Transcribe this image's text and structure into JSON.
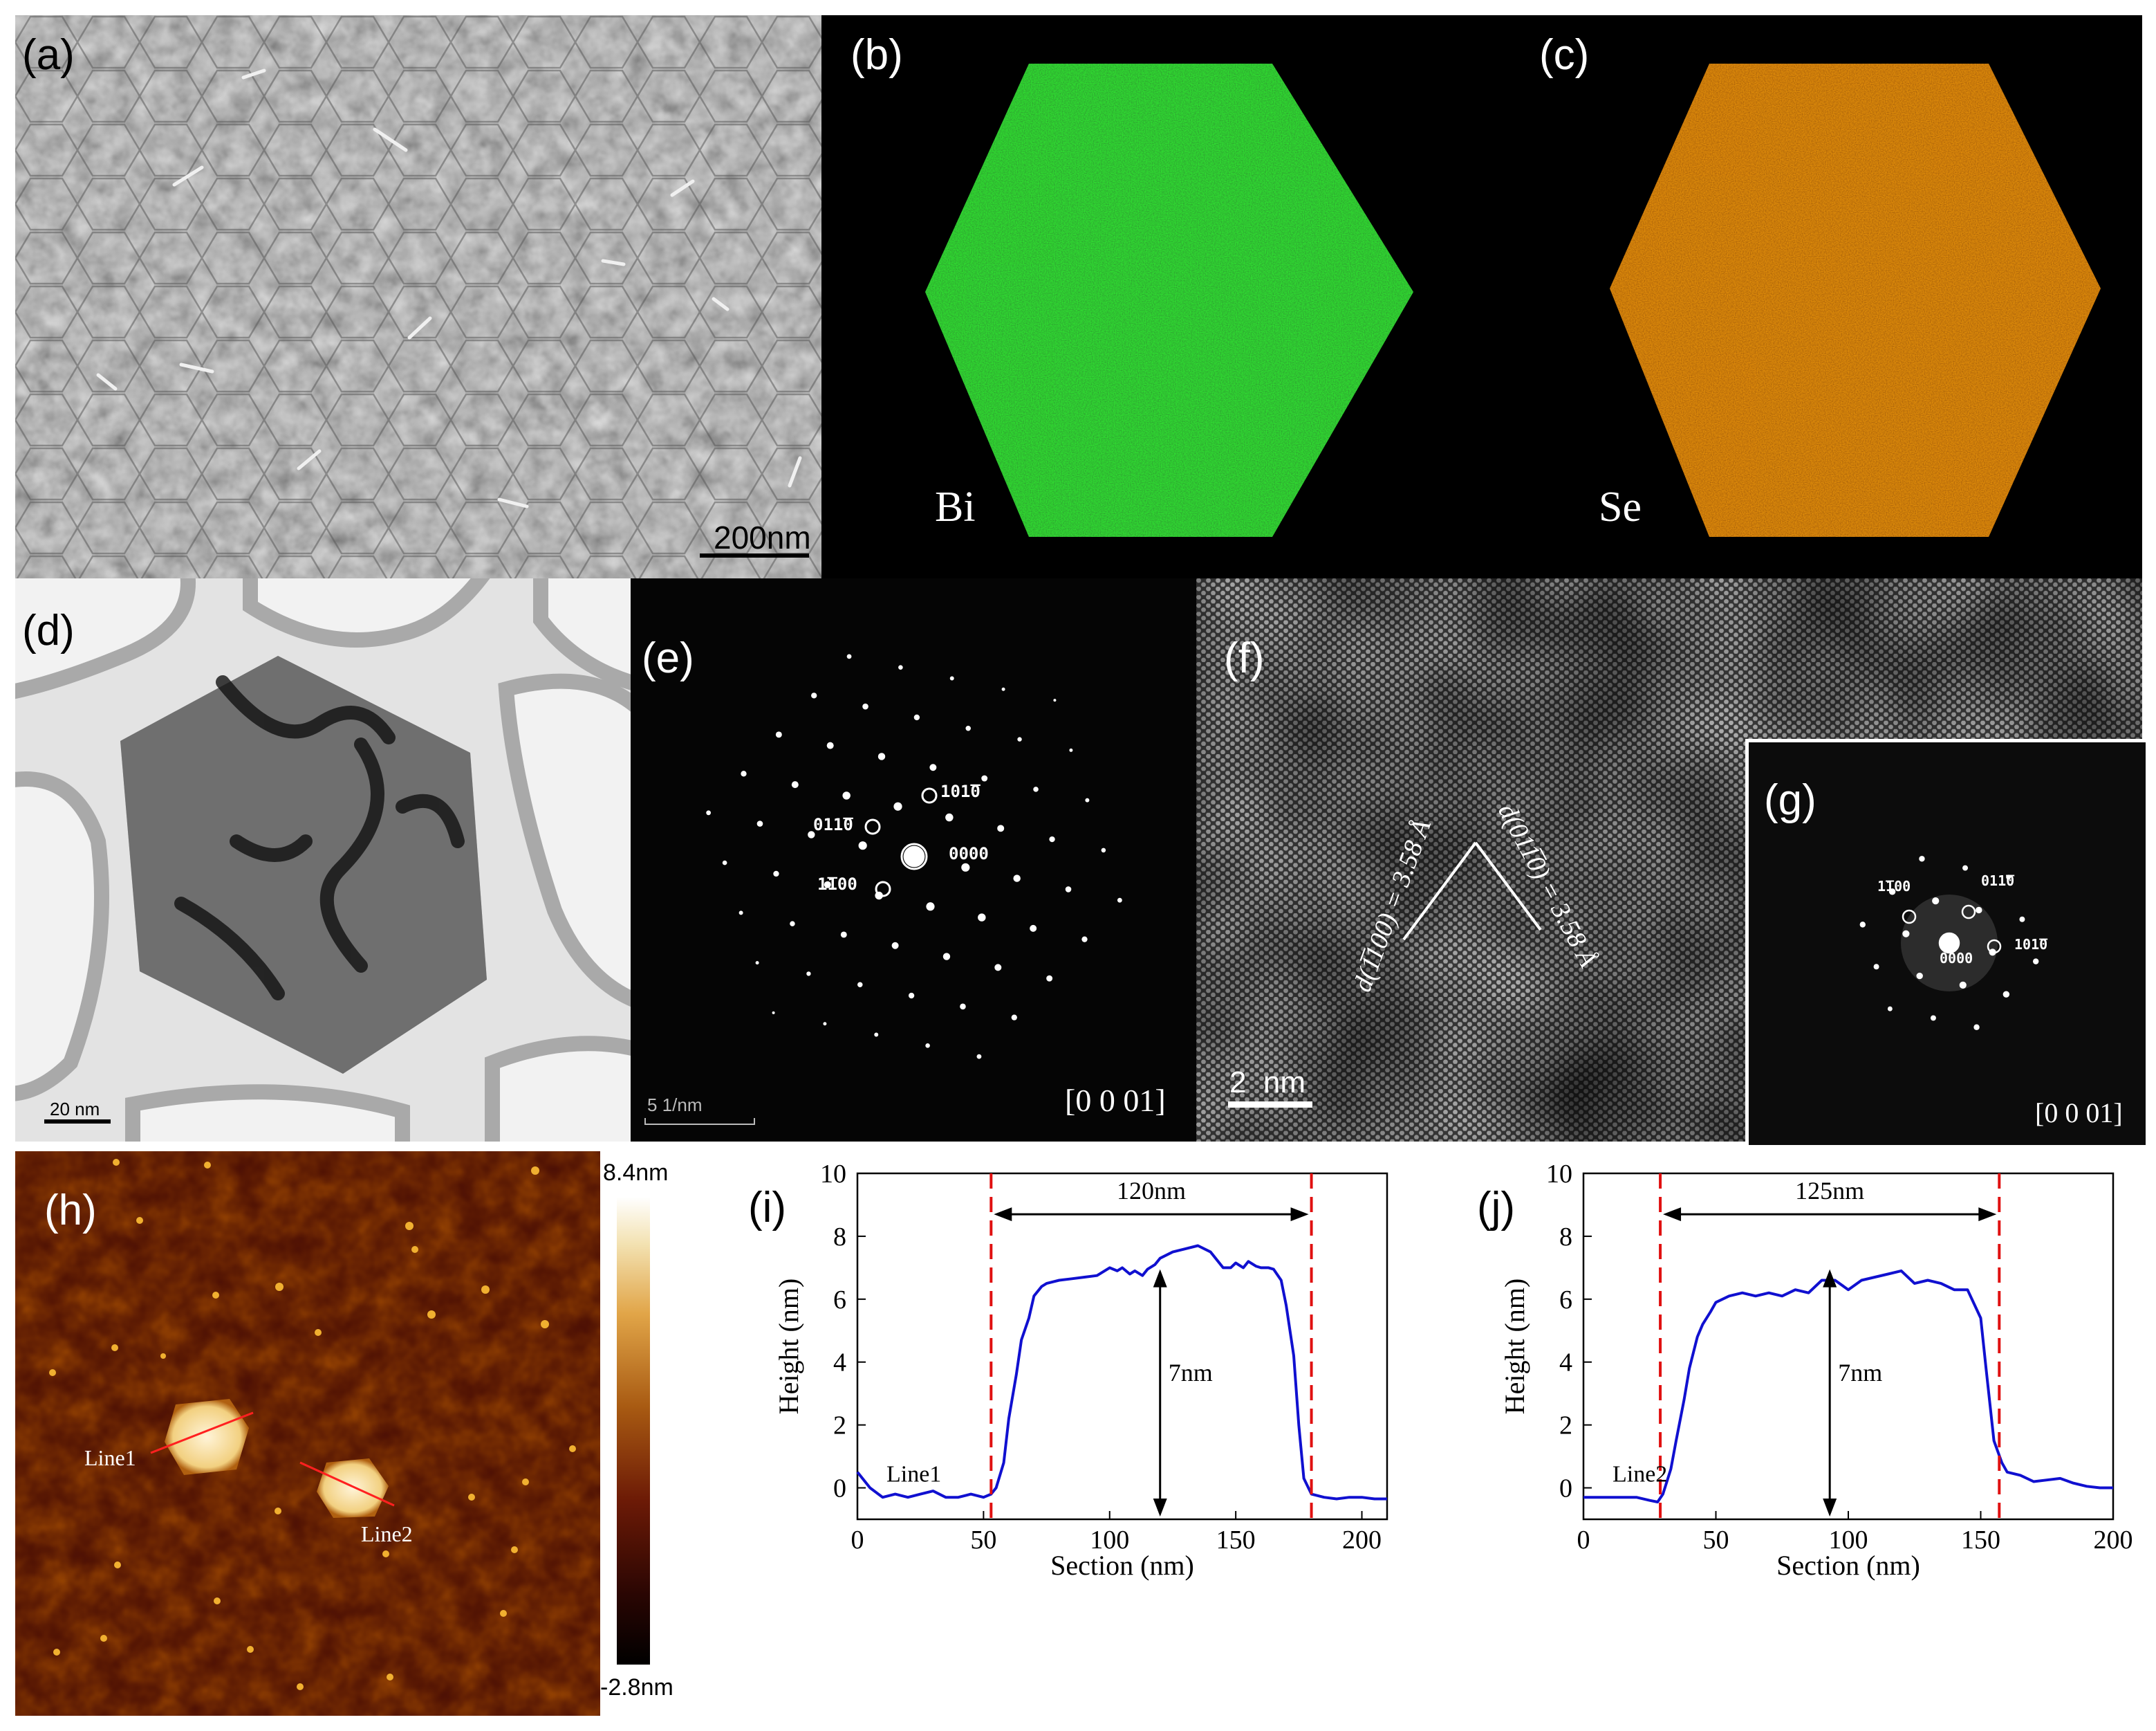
{
  "panels": {
    "a": {
      "label": "(a)",
      "scale_bar": "200nm"
    },
    "b": {
      "label": "(b)",
      "element": "Bi",
      "color": "#1fa31f"
    },
    "c": {
      "label": "(c)",
      "element": "Se",
      "color": "#d2601a"
    },
    "d": {
      "label": "(d)",
      "scale_bar": "20 nm"
    },
    "e": {
      "label": "(e)",
      "scale_bar": "5 1/nm",
      "zone_axis": "[0 0 01]",
      "spots": [
        "101̅0",
        "011̅0",
        "0000",
        "1̅100"
      ]
    },
    "f": {
      "label": "(f)",
      "scale_bar": "2  nm",
      "d1": "d(1̅100) = 3.58 Å",
      "d2": "d(011̅0) = 3.58 Å"
    },
    "g": {
      "label": "(g)",
      "zone_axis": "[0 0 01]",
      "spots": [
        "1̅100",
        "011̅0",
        "0000",
        "101̅0"
      ]
    },
    "h": {
      "label": "(h)",
      "colorbar_max": "8.4nm",
      "colorbar_min": "-2.8nm",
      "line1": "Line1",
      "line2": "Line2"
    }
  },
  "chart_data": [
    {
      "panel": "(i)",
      "type": "line",
      "xlabel": "Section (nm)",
      "ylabel": "Height (nm)",
      "xlim": [
        0,
        210
      ],
      "ylim": [
        -1,
        10
      ],
      "xticks": [
        "0",
        "50",
        "100",
        "150",
        "200"
      ],
      "yticks": [
        "0",
        "2",
        "4",
        "6",
        "8",
        "10"
      ],
      "series_label": "Line1",
      "series_color": "#1010d0",
      "marker_color": "#e01010",
      "x": [
        0,
        5,
        10,
        15,
        20,
        25,
        30,
        35,
        40,
        45,
        50,
        53,
        55,
        58,
        60,
        63,
        65,
        68,
        70,
        73,
        75,
        80,
        85,
        90,
        95,
        100,
        103,
        105,
        108,
        110,
        113,
        115,
        118,
        120,
        125,
        130,
        135,
        140,
        143,
        145,
        148,
        150,
        153,
        155,
        158,
        160,
        163,
        165,
        168,
        170,
        173,
        175,
        177,
        180,
        185,
        190,
        195,
        200,
        205,
        210
      ],
      "y": [
        0.5,
        0,
        -0.3,
        -0.2,
        -0.3,
        -0.2,
        -0.1,
        -0.3,
        -0.3,
        -0.2,
        -0.3,
        -0.2,
        0,
        0.8,
        2.2,
        3.6,
        4.7,
        5.4,
        6.1,
        6.4,
        6.5,
        6.6,
        6.65,
        6.7,
        6.75,
        7,
        6.9,
        7,
        6.8,
        6.9,
        6.75,
        6.95,
        7.1,
        7.3,
        7.5,
        7.6,
        7.7,
        7.5,
        7.2,
        7,
        7,
        7.15,
        7,
        7.2,
        7.05,
        7,
        7,
        6.95,
        6.6,
        5.8,
        4.2,
        2,
        0.3,
        -0.2,
        -0.3,
        -0.35,
        -0.3,
        -0.3,
        -0.35,
        -0.35
      ],
      "markers_x": [
        53,
        180
      ],
      "annotations": {
        "width": "120nm",
        "height": "7nm",
        "height_at_x": 120,
        "width_arrow_y": 8.7
      }
    },
    {
      "panel": "(j)",
      "type": "line",
      "xlabel": "Section (nm)",
      "ylabel": "Height (nm)",
      "xlim": [
        0,
        200
      ],
      "ylim": [
        -1,
        10
      ],
      "xticks": [
        "0",
        "50",
        "100",
        "150",
        "200"
      ],
      "yticks": [
        "0",
        "2",
        "4",
        "6",
        "8",
        "10"
      ],
      "series_label": "Line2",
      "series_color": "#1010d0",
      "marker_color": "#e01010",
      "x": [
        0,
        5,
        10,
        15,
        20,
        25,
        28,
        30,
        33,
        35,
        38,
        40,
        43,
        45,
        48,
        50,
        55,
        60,
        65,
        70,
        75,
        80,
        85,
        90,
        95,
        100,
        105,
        110,
        115,
        120,
        125,
        130,
        135,
        140,
        145,
        150,
        152,
        155,
        158,
        160,
        165,
        170,
        175,
        180,
        185,
        190,
        195,
        200
      ],
      "y": [
        -0.3,
        -0.3,
        -0.3,
        -0.3,
        -0.3,
        -0.4,
        -0.45,
        -0.2,
        0.6,
        1.5,
        2.8,
        3.8,
        4.8,
        5.2,
        5.6,
        5.9,
        6.1,
        6.2,
        6.1,
        6.2,
        6.1,
        6.3,
        6.2,
        6.6,
        6.6,
        6.3,
        6.6,
        6.7,
        6.8,
        6.9,
        6.5,
        6.6,
        6.5,
        6.3,
        6.3,
        5.4,
        3.8,
        1.5,
        0.8,
        0.5,
        0.4,
        0.2,
        0.25,
        0.3,
        0.15,
        0.05,
        0,
        0
      ],
      "markers_x": [
        29,
        157
      ],
      "annotations": {
        "width": "125nm",
        "height": "7nm",
        "height_at_x": 93,
        "width_arrow_y": 8.7
      }
    }
  ]
}
